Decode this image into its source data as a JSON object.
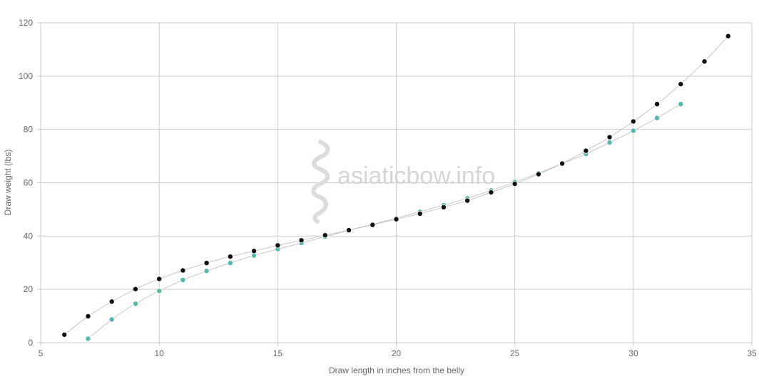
{
  "chart_data": {
    "type": "scatter",
    "title": "",
    "xlabel": "Draw length in inches from the belly",
    "ylabel": "Draw weight (lbs)",
    "xlim": [
      5,
      35
    ],
    "ylim": [
      0,
      120
    ],
    "x_ticks": [
      5,
      10,
      15,
      20,
      25,
      30,
      35
    ],
    "y_ticks": [
      0,
      20,
      40,
      60,
      80,
      100,
      120
    ],
    "grid": true,
    "legend": "none",
    "watermark": "asiaticbow.info",
    "series": [
      {
        "color": "#55b8b0",
        "x": [
          7,
          8,
          9,
          10,
          11,
          12,
          13,
          14,
          15,
          16,
          17,
          18,
          19,
          20,
          21,
          22,
          23,
          24,
          25,
          26,
          27,
          28,
          29,
          30,
          31,
          32
        ],
        "y": [
          1.5,
          8.7,
          14.6,
          19.4,
          23.5,
          26.9,
          29.9,
          32.7,
          35.1,
          37.4,
          39.8,
          42.2,
          44.4,
          46.7,
          49.1,
          51.6,
          54.2,
          57.1,
          60.3,
          63.6,
          67.2,
          70.8,
          75.1,
          79.5,
          84.3,
          89.5
        ]
      },
      {
        "color": "#111111",
        "x": [
          6,
          7,
          8,
          9,
          10,
          11,
          12,
          13,
          14,
          15,
          16,
          17,
          18,
          19,
          20,
          21,
          22,
          23,
          24,
          25,
          26,
          27,
          28,
          29,
          30,
          31,
          32,
          33,
          34
        ],
        "y": [
          3.0,
          9.9,
          15.4,
          20.1,
          23.9,
          27.1,
          29.9,
          32.3,
          34.4,
          36.5,
          38.4,
          40.3,
          42.2,
          44.2,
          46.3,
          48.4,
          50.8,
          53.3,
          56.4,
          59.6,
          63.2,
          67.2,
          72.0,
          77.1,
          83.0,
          89.5,
          97.0,
          105.5,
          115.0
        ]
      }
    ]
  }
}
